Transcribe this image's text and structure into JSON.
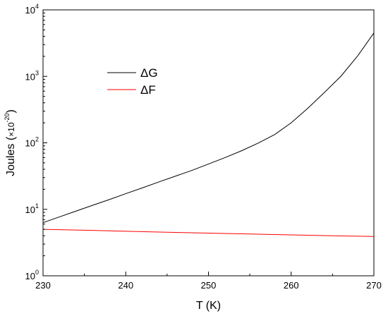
{
  "chart_data": {
    "type": "line",
    "xlabel": "T (K)",
    "ylabel": "Joules (×10-20)",
    "ylabel_parts": {
      "main": "Joules (",
      "mult": "×10",
      "exp": "-20",
      "close": ")"
    },
    "xlim": [
      230,
      270
    ],
    "ylim": [
      1,
      10000
    ],
    "yscale": "log",
    "xticks": [
      230,
      240,
      250,
      260,
      270
    ],
    "xtick_labels": [
      "230",
      "240",
      "250",
      "260",
      "270"
    ],
    "yticks": [
      1,
      10,
      100,
      1000,
      10000
    ],
    "ytick_labels": [
      {
        "base": "10",
        "exp": "0"
      },
      {
        "base": "10",
        "exp": "1"
      },
      {
        "base": "10",
        "exp": "2"
      },
      {
        "base": "10",
        "exp": "3"
      },
      {
        "base": "10",
        "exp": "4"
      }
    ],
    "legend_position": "upper-left",
    "series": [
      {
        "name": "ΔG",
        "color": "#000000",
        "x": [
          230,
          232,
          234,
          236,
          238,
          240,
          242,
          244,
          246,
          248,
          250,
          252,
          254,
          256,
          258,
          260,
          262,
          264,
          266,
          268,
          270
        ],
        "y": [
          6.3,
          7.7,
          9.4,
          11.5,
          14,
          17.2,
          21,
          25.8,
          31.5,
          38.5,
          48,
          60,
          76,
          99,
          133,
          200,
          330,
          570,
          1000,
          2000,
          4500
        ]
      },
      {
        "name": "ΔF",
        "color": "#ff0000",
        "x": [
          230,
          235,
          240,
          245,
          250,
          255,
          260,
          265,
          270
        ],
        "y": [
          5.0,
          4.85,
          4.68,
          4.52,
          4.38,
          4.25,
          4.12,
          4.0,
          3.9
        ]
      }
    ]
  }
}
